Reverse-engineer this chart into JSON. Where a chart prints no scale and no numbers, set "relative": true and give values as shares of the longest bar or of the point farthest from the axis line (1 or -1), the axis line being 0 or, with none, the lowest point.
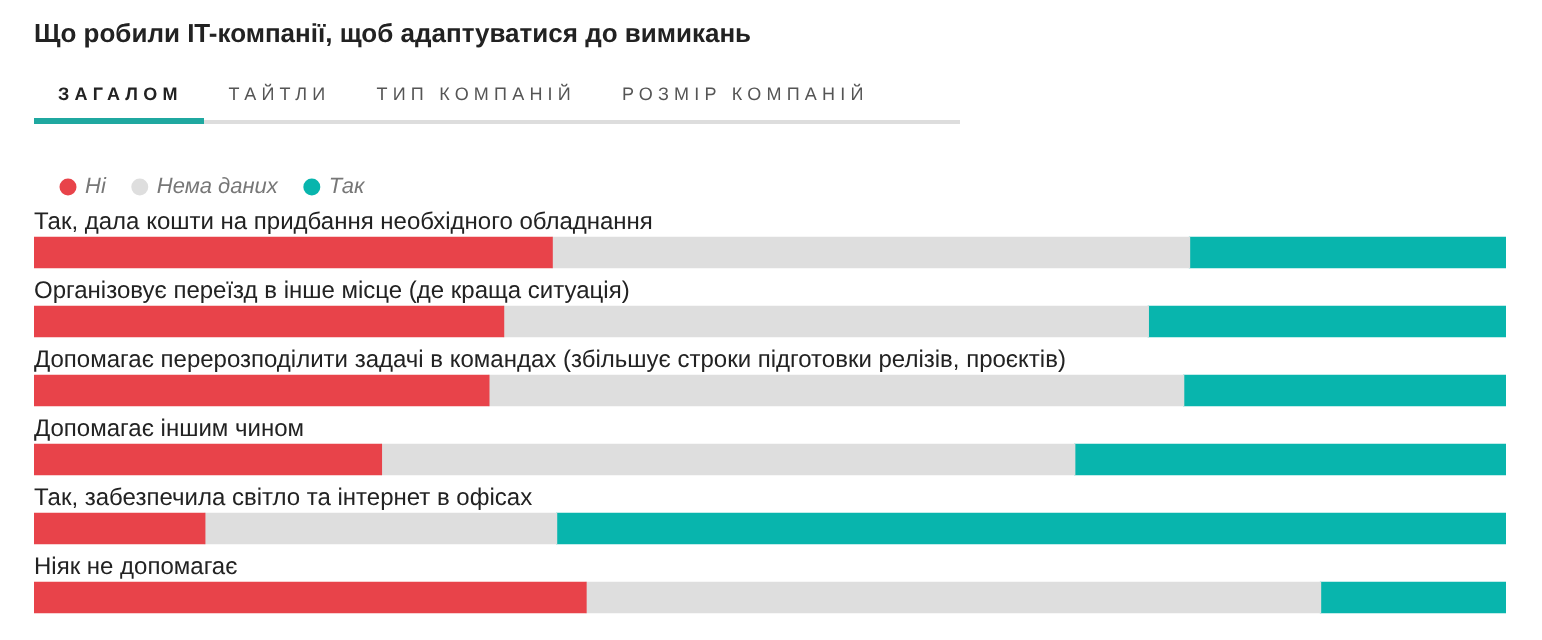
{
  "chart_data": {
    "type": "bar",
    "orientation": "horizontal",
    "stacked": true,
    "relative": true,
    "title": "Що робили IT-компанії, щоб адаптуватися до вимикань",
    "annotations": [
      "ЗАГАЛОМ",
      "ТАЙТЛИ",
      "ТИП КОМПАНІЙ",
      "РОЗМІР КОМПАНІЙ"
    ],
    "categories": [
      "Так, дала кошти на придбання необхідного обладнання",
      "Організовує переїзд в інше місце (де краща ситуація)",
      "Допомагає перерозподілити задачі в командах (збільшує строки підготовки релізів, проєктів)",
      "Допомагає іншим чином",
      "Так, забезпечила світло та інтернет в офісах",
      "Ніяк не допомагає"
    ],
    "series": [
      {
        "name": "Ні",
        "color": "#e8434a",
        "values": [
          0.352,
          0.319,
          0.309,
          0.236,
          0.116,
          0.375
        ]
      },
      {
        "name": "Нема даних",
        "color": "#dedede",
        "values": [
          0.433,
          0.438,
          0.472,
          0.471,
          0.239,
          0.499
        ]
      },
      {
        "name": "Так",
        "color": "#08b5ad",
        "values": [
          0.215,
          0.243,
          0.219,
          0.293,
          0.645,
          0.126
        ]
      }
    ],
    "legend": "top left"
  }
}
